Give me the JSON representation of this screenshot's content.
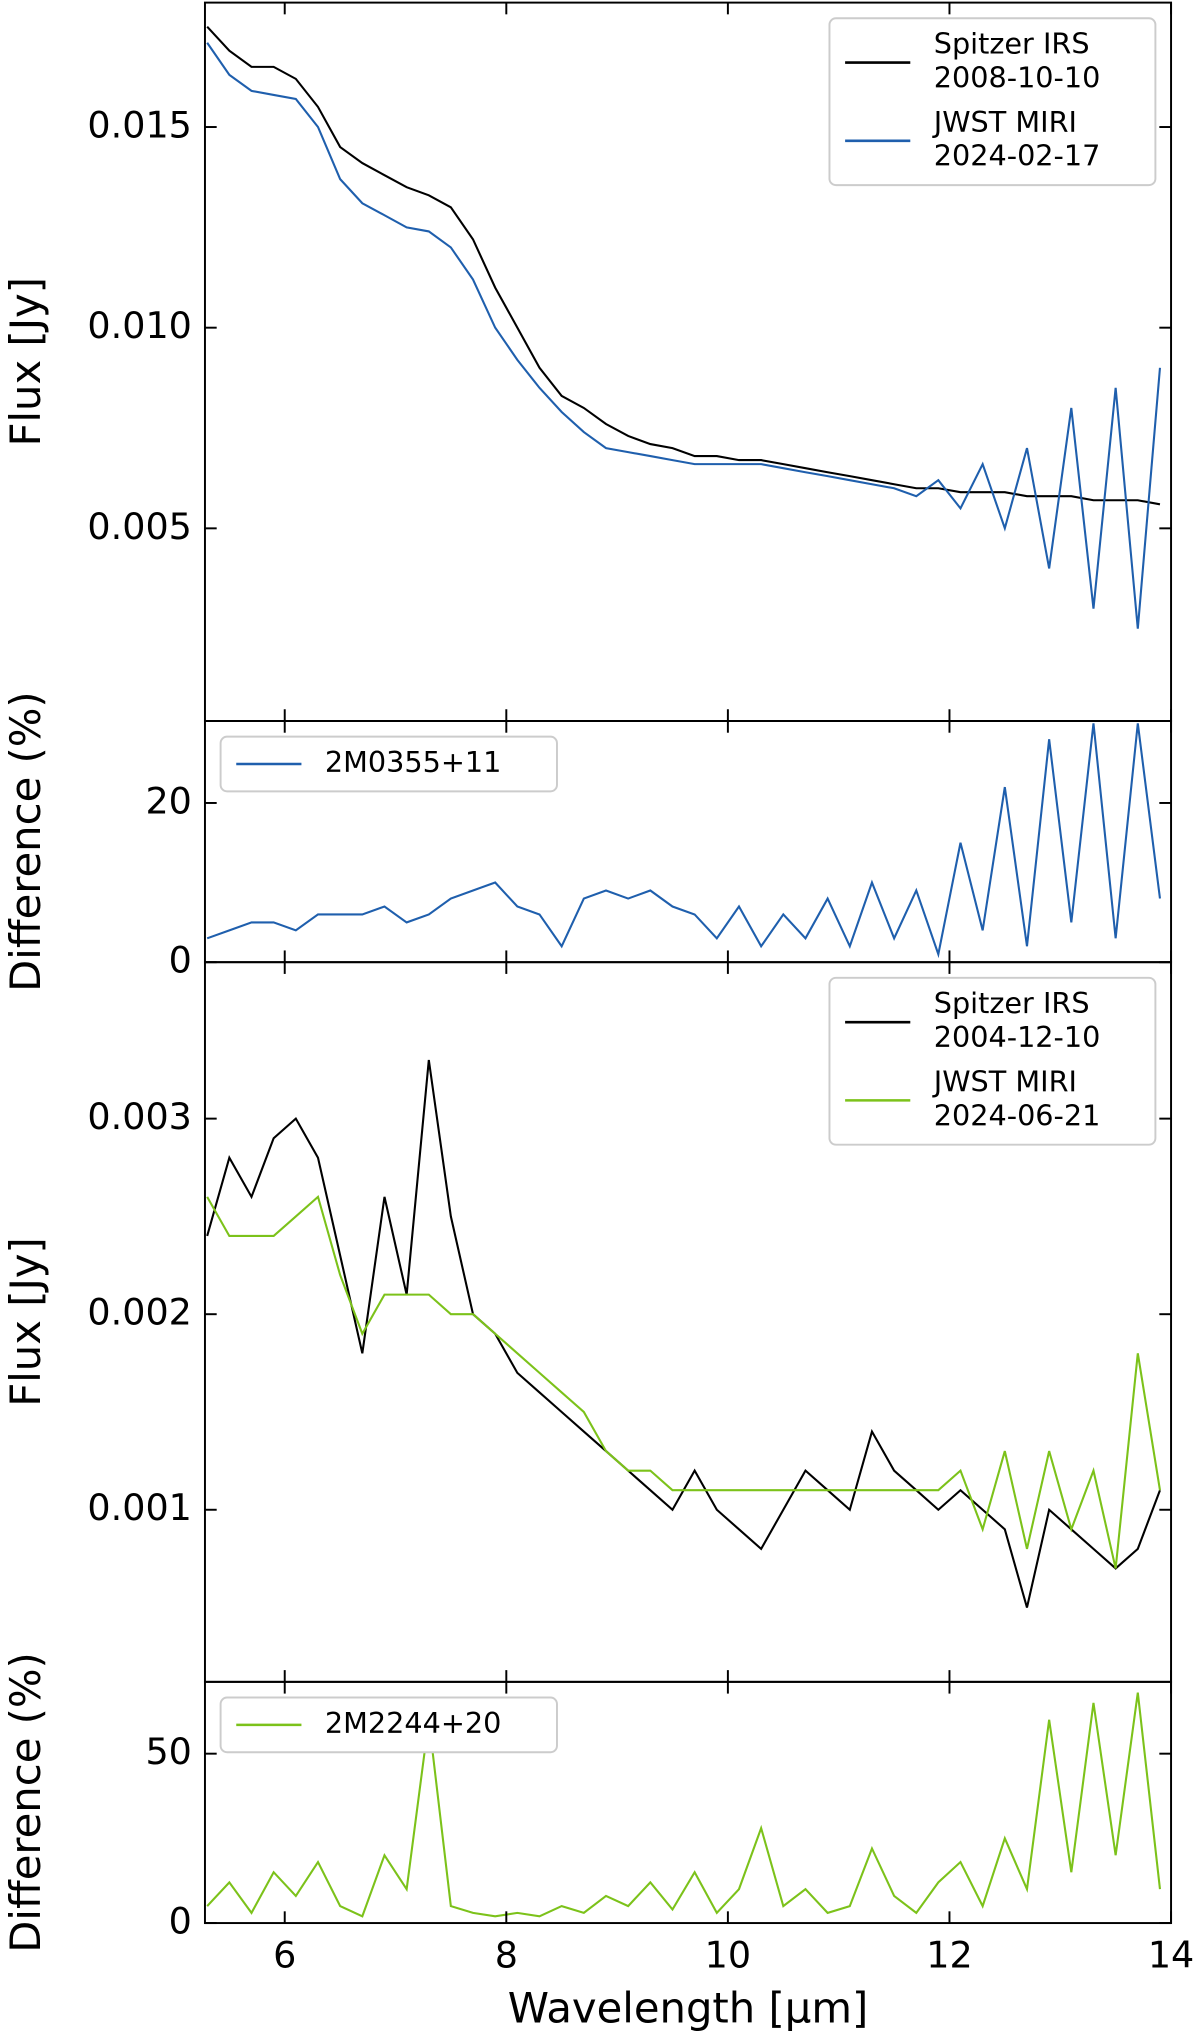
{
  "chart_data": [
    {
      "type": "line",
      "ylabel": "Flux [Jy]",
      "legend": "upper right",
      "x": [
        5.3,
        5.5,
        5.7,
        5.9,
        6.1,
        6.3,
        6.5,
        6.7,
        6.9,
        7.1,
        7.3,
        7.5,
        7.7,
        7.9,
        8.1,
        8.3,
        8.5,
        8.7,
        8.9,
        9.1,
        9.3,
        9.5,
        9.7,
        9.9,
        10.1,
        10.3,
        10.5,
        10.7,
        10.9,
        11.1,
        11.3,
        11.5,
        11.7,
        11.9,
        12.1,
        12.3,
        12.5,
        12.7,
        12.9,
        13.1,
        13.3,
        13.5,
        13.7,
        13.9
      ],
      "xlim": [
        5.28,
        14
      ],
      "xticks": [
        6,
        8,
        10,
        12,
        14
      ],
      "ylim": [
        0.0002,
        0.0181
      ],
      "yticks": [
        0.005,
        {
          "value": 0.01,
          "label": "0.010"
        },
        0.015
      ],
      "series": [
        {
          "name": "Spitzer IRS\n2008-10-10",
          "color": "#000000",
          "values": [
            0.0175,
            0.0169,
            0.0165,
            0.0165,
            0.0162,
            0.0155,
            0.0145,
            0.0141,
            0.0138,
            0.0135,
            0.0133,
            0.013,
            0.0122,
            0.011,
            0.01,
            0.009,
            0.0083,
            0.008,
            0.0076,
            0.0073,
            0.0071,
            0.007,
            0.0068,
            0.0068,
            0.0067,
            0.0067,
            0.0066,
            0.0065,
            0.0064,
            0.0063,
            0.0062,
            0.0061,
            0.006,
            0.006,
            0.0059,
            0.0059,
            0.0059,
            0.0058,
            0.0058,
            0.0058,
            0.0057,
            0.0057,
            0.0057,
            0.0056
          ]
        },
        {
          "name": "JWST MIRI\n2024-02-17",
          "color": "#1f5fad",
          "values": [
            0.0171,
            0.0163,
            0.0159,
            0.0158,
            0.0157,
            0.015,
            0.0137,
            0.0131,
            0.0128,
            0.0125,
            0.0124,
            0.012,
            0.0112,
            0.01,
            0.0092,
            0.0085,
            0.0079,
            0.0074,
            0.007,
            0.0069,
            0.0068,
            0.0067,
            0.0066,
            0.0066,
            0.0066,
            0.0066,
            0.0065,
            0.0064,
            0.0063,
            0.0062,
            0.0061,
            0.006,
            0.0058,
            0.0062,
            0.0055,
            0.0066,
            0.005,
            0.007,
            0.004,
            0.008,
            0.003,
            0.0085,
            0.0025,
            0.009
          ]
        }
      ]
    },
    {
      "type": "line",
      "ylabel": "Difference (%)",
      "legend": "upper left",
      "x": [
        5.3,
        5.5,
        5.7,
        5.9,
        6.1,
        6.3,
        6.5,
        6.7,
        6.9,
        7.1,
        7.3,
        7.5,
        7.7,
        7.9,
        8.1,
        8.3,
        8.5,
        8.7,
        8.9,
        9.1,
        9.3,
        9.5,
        9.7,
        9.9,
        10.1,
        10.3,
        10.5,
        10.7,
        10.9,
        11.1,
        11.3,
        11.5,
        11.7,
        11.9,
        12.1,
        12.3,
        12.5,
        12.7,
        12.9,
        13.1,
        13.3,
        13.5,
        13.7,
        13.9
      ],
      "xlim": [
        5.28,
        14
      ],
      "xticks": [
        6,
        8,
        10,
        12,
        14
      ],
      "ylim": [
        0,
        30.3
      ],
      "yticks": [
        0,
        20
      ],
      "series": [
        {
          "name": "2M0355+11",
          "color": "#1f5fad",
          "values": [
            3,
            4,
            5,
            5,
            4,
            6,
            6,
            6,
            7,
            5,
            6,
            8,
            9,
            10,
            7,
            6,
            2,
            8,
            9,
            8,
            9,
            7,
            6,
            3,
            7,
            2,
            6,
            3,
            8,
            2,
            10,
            3,
            9,
            1,
            15,
            4,
            22,
            2,
            28,
            5,
            30,
            3,
            30,
            8
          ]
        }
      ]
    },
    {
      "type": "line",
      "ylabel": "Flux [Jy]",
      "legend": "upper right",
      "x": [
        5.3,
        5.5,
        5.7,
        5.9,
        6.1,
        6.3,
        6.5,
        6.7,
        6.9,
        7.1,
        7.3,
        7.5,
        7.7,
        7.9,
        8.1,
        8.3,
        8.5,
        8.7,
        8.9,
        9.1,
        9.3,
        9.5,
        9.7,
        9.9,
        10.1,
        10.3,
        10.5,
        10.7,
        10.9,
        11.1,
        11.3,
        11.5,
        11.7,
        11.9,
        12.1,
        12.3,
        12.5,
        12.7,
        12.9,
        13.1,
        13.3,
        13.5,
        13.7,
        13.9
      ],
      "xlim": [
        5.28,
        14
      ],
      "xticks": [
        6,
        8,
        10,
        12,
        14
      ],
      "ylim": [
        0.00012,
        0.0038
      ],
      "yticks": [
        0.001,
        0.002,
        0.003
      ],
      "series": [
        {
          "name": "Spitzer IRS\n2004-12-10",
          "color": "#000000",
          "values": [
            0.0024,
            0.0028,
            0.0026,
            0.0029,
            0.003,
            0.0028,
            0.0023,
            0.0018,
            0.0026,
            0.0021,
            0.0033,
            0.0025,
            0.002,
            0.0019,
            0.0017,
            0.0016,
            0.0015,
            0.0014,
            0.0013,
            0.0012,
            0.0011,
            0.001,
            0.0012,
            0.001,
            0.0009,
            0.0008,
            0.001,
            0.0012,
            0.0011,
            0.001,
            0.0014,
            0.0012,
            0.0011,
            0.001,
            0.0011,
            0.001,
            0.0009,
            0.0005,
            0.001,
            0.0009,
            0.0008,
            0.0007,
            0.0008,
            0.0011
          ]
        },
        {
          "name": "JWST MIRI\n2024-06-21",
          "color": "#7cc21a",
          "values": [
            0.0026,
            0.0024,
            0.0024,
            0.0024,
            0.0025,
            0.0026,
            0.0022,
            0.0019,
            0.0021,
            0.0021,
            0.0021,
            0.002,
            0.002,
            0.0019,
            0.0018,
            0.0017,
            0.0016,
            0.0015,
            0.0013,
            0.0012,
            0.0012,
            0.0011,
            0.0011,
            0.0011,
            0.0011,
            0.0011,
            0.0011,
            0.0011,
            0.0011,
            0.0011,
            0.0011,
            0.0011,
            0.0011,
            0.0011,
            0.0012,
            0.0009,
            0.0013,
            0.0008,
            0.0013,
            0.0009,
            0.0012,
            0.0007,
            0.0018,
            0.0011
          ]
        }
      ]
    },
    {
      "type": "line",
      "ylabel": "Difference (%)",
      "xlabel": "Wavelength [μm]",
      "legend": "upper left",
      "x": [
        5.3,
        5.5,
        5.7,
        5.9,
        6.1,
        6.3,
        6.5,
        6.7,
        6.9,
        7.1,
        7.3,
        7.5,
        7.7,
        7.9,
        8.1,
        8.3,
        8.5,
        8.7,
        8.9,
        9.1,
        9.3,
        9.5,
        9.7,
        9.9,
        10.1,
        10.3,
        10.5,
        10.7,
        10.9,
        11.1,
        11.3,
        11.5,
        11.7,
        11.9,
        12.1,
        12.3,
        12.5,
        12.7,
        12.9,
        13.1,
        13.3,
        13.5,
        13.7,
        13.9
      ],
      "xlim": [
        5.28,
        14
      ],
      "xticks": [
        6,
        8,
        10,
        12,
        14
      ],
      "ylim": [
        0,
        71.2
      ],
      "yticks": [
        0,
        50
      ],
      "series": [
        {
          "name": "2M2244+20",
          "color": "#7cc21a",
          "values": [
            5,
            12,
            3,
            15,
            8,
            18,
            5,
            2,
            20,
            10,
            60,
            5,
            3,
            2,
            3,
            2,
            5,
            3,
            8,
            5,
            12,
            4,
            15,
            3,
            10,
            28,
            5,
            10,
            3,
            5,
            22,
            8,
            3,
            12,
            18,
            5,
            25,
            10,
            60,
            15,
            65,
            20,
            68,
            10
          ]
        }
      ]
    }
  ]
}
